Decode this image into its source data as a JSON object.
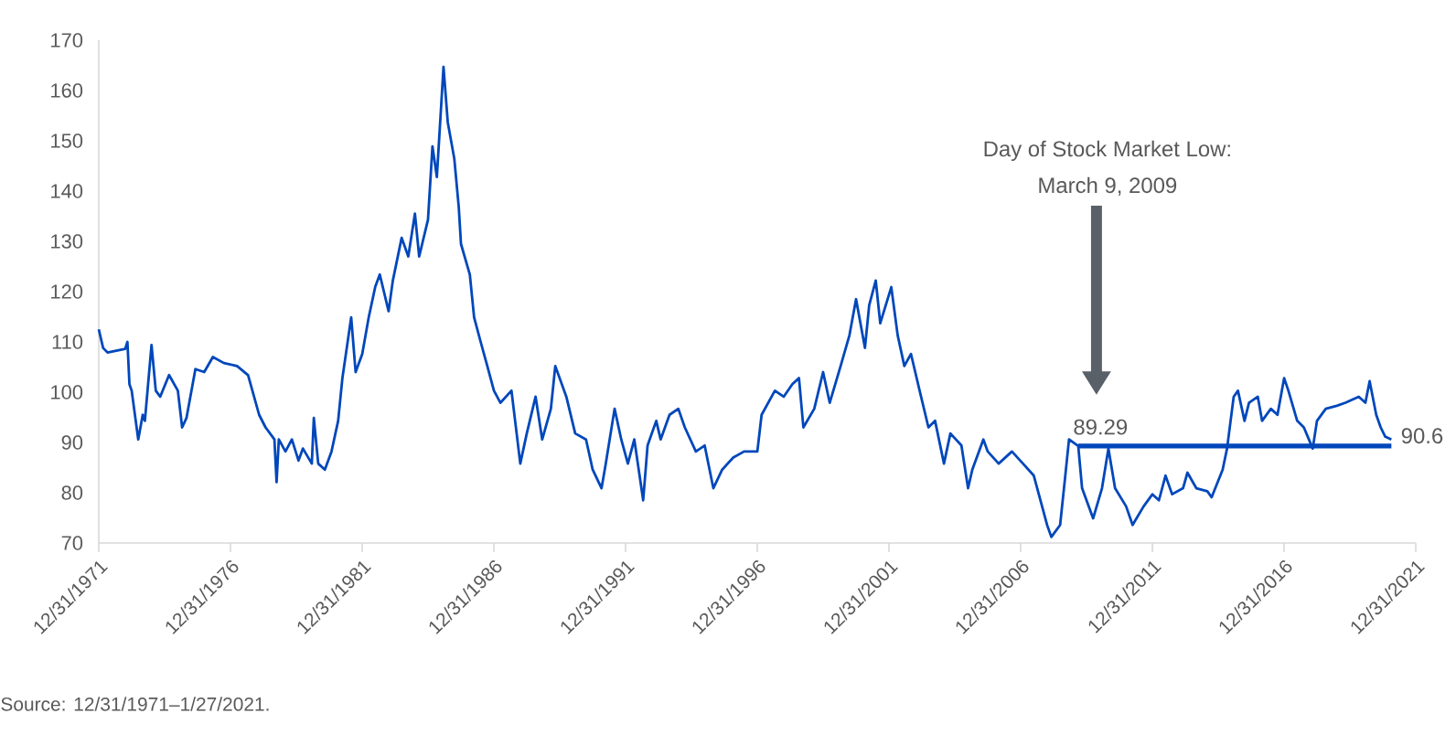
{
  "chart_data": {
    "type": "line",
    "xlim": [
      "1971-12-31",
      "2021-12-31"
    ],
    "ylim": [
      70,
      170
    ],
    "xticks": [
      {
        "value": "1971-12-31",
        "label": "12/31/1971"
      },
      {
        "value": "1976-12-31",
        "label": "12/31/1976"
      },
      {
        "value": "1981-12-31",
        "label": "12/31/1981"
      },
      {
        "value": "1986-12-31",
        "label": "12/31/1986"
      },
      {
        "value": "1991-12-31",
        "label": "12/31/1991"
      },
      {
        "value": "1996-12-31",
        "label": "12/31/1996"
      },
      {
        "value": "2001-12-31",
        "label": "12/31/2001"
      },
      {
        "value": "2006-12-31",
        "label": "12/31/2006"
      },
      {
        "value": "2011-12-31",
        "label": "12/31/2011"
      },
      {
        "value": "2016-12-31",
        "label": "12/31/2016"
      },
      {
        "value": "2021-12-31",
        "label": "12/31/2021"
      }
    ],
    "yticks": [
      70,
      80,
      90,
      100,
      110,
      120,
      130,
      140,
      150,
      160,
      170
    ],
    "series": [
      {
        "color": "#0047bb",
        "x": [
          "1971-12-31",
          "1972-03",
          "1972-05",
          "1973-01",
          "1973-02",
          "1973-03",
          "1973-04",
          "1973-07",
          "1973-09",
          "1973-10",
          "1974-01",
          "1974-03",
          "1974-05",
          "1974-09",
          "1975-01",
          "1975-03",
          "1975-05",
          "1975-09",
          "1976-01",
          "1976-05",
          "1976-10",
          "1977-04",
          "1977-09",
          "1978-02",
          "1978-05",
          "1978-09",
          "1978-10",
          "1978-11",
          "1979-02",
          "1979-05",
          "1979-08",
          "1979-10",
          "1980-02",
          "1980-03",
          "1980-05",
          "1980-08",
          "1980-11",
          "1981-02",
          "1981-04",
          "1981-08",
          "1981-10",
          "1982-01",
          "1982-04",
          "1982-07",
          "1982-09",
          "1983-01",
          "1983-03",
          "1983-07",
          "1983-10",
          "1984-01",
          "1984-03",
          "1984-07",
          "1984-09",
          "1984-11",
          "1985-02",
          "1985-04",
          "1985-07",
          "1985-09",
          "1985-10",
          "1986-02",
          "1986-04",
          "1986-07",
          "1986-10",
          "1987-01",
          "1987-04",
          "1987-09",
          "1988-01",
          "1988-04",
          "1988-08",
          "1988-11",
          "1989-03",
          "1989-05",
          "1989-10",
          "1990-02",
          "1990-07",
          "1990-10",
          "1991-02",
          "1991-04",
          "1991-08",
          "1991-11",
          "1992-02",
          "1992-05",
          "1992-09",
          "1992-11",
          "1993-03",
          "1993-05",
          "1993-09",
          "1994-01",
          "1994-04",
          "1994-09",
          "1995-01",
          "1995-05",
          "1995-09",
          "1996-02",
          "1996-07",
          "1997-01",
          "1997-03",
          "1997-09",
          "1998-01",
          "1998-05",
          "1998-08",
          "1998-10",
          "1999-03",
          "1999-07",
          "1999-10",
          "2000-03",
          "2000-07",
          "2000-10",
          "2001-02",
          "2001-04",
          "2001-07",
          "2001-09",
          "2002-02",
          "2002-05",
          "2002-08",
          "2002-11",
          "2003-03",
          "2003-07",
          "2003-10",
          "2004-02",
          "2004-05",
          "2004-10",
          "2005-01",
          "2005-03",
          "2005-08",
          "2005-10",
          "2006-03",
          "2006-09",
          "2007-02",
          "2007-07",
          "2007-10",
          "2008-01",
          "2008-03",
          "2008-07",
          "2008-09",
          "2008-11",
          "2009-03-09",
          "2009-05",
          "2009-10",
          "2010-02",
          "2010-05",
          "2010-08",
          "2011-01",
          "2011-04",
          "2011-09",
          "2012-01",
          "2012-04",
          "2012-07",
          "2012-10",
          "2013-03",
          "2013-05",
          "2013-09",
          "2014-02",
          "2014-04",
          "2014-09",
          "2014-11",
          "2015-02",
          "2015-04",
          "2015-07",
          "2015-09",
          "2016-01",
          "2016-03",
          "2016-07",
          "2016-10",
          "2017-01",
          "2017-03",
          "2017-07",
          "2017-10",
          "2018-02",
          "2018-04",
          "2018-08",
          "2019-01",
          "2019-05",
          "2019-11",
          "2020-02",
          "2020-04",
          "2020-07",
          "2020-09",
          "2020-11",
          "2021-01-27"
        ],
        "values": [
          112.5,
          108.8,
          107.9,
          108.6,
          110,
          101.6,
          100.3,
          90.6,
          95.5,
          94.3,
          109.4,
          100.3,
          99.1,
          103.4,
          100.3,
          93,
          94.9,
          104.6,
          104,
          107,
          105.8,
          105.2,
          103.4,
          95.5,
          93,
          90.6,
          82.1,
          90.6,
          88.2,
          90.6,
          86.4,
          88.8,
          85.8,
          94.9,
          85.8,
          84.6,
          88.2,
          94.3,
          102.8,
          114.9,
          104,
          107.6,
          114.9,
          121,
          123.4,
          116.1,
          122.2,
          130.7,
          127,
          135.5,
          127,
          134.3,
          148.9,
          142.8,
          164.7,
          153.7,
          146.4,
          136.7,
          129.5,
          123.4,
          114.9,
          110,
          105.2,
          100.3,
          97.9,
          100.3,
          85.8,
          91.8,
          99.1,
          90.6,
          96.7,
          105.2,
          99.1,
          91.8,
          90.6,
          84.6,
          80.9,
          85.8,
          96.7,
          90.6,
          85.8,
          90.6,
          78.5,
          89.4,
          94.3,
          90.6,
          95.5,
          96.7,
          93,
          88.2,
          89.4,
          80.9,
          84.6,
          87,
          88.2,
          88.2,
          95.5,
          100.3,
          99.1,
          101.6,
          102.8,
          93,
          96.7,
          104,
          97.9,
          105.2,
          111.3,
          118.5,
          108.8,
          117.3,
          122.2,
          113.7,
          120.9,
          111.3,
          105.2,
          107.6,
          100.3,
          93,
          94.3,
          85.8,
          91.8,
          89.4,
          80.9,
          84.6,
          90.6,
          88.2,
          85.8,
          88.2,
          85.8,
          83.4,
          78.5,
          73.6,
          71.2,
          73.6,
          82.1,
          90.6,
          89.29,
          80.9,
          74.9,
          80.9,
          88.8,
          80.9,
          77.3,
          73.6,
          77.3,
          79.7,
          78.5,
          83.4,
          79.7,
          80.9,
          84,
          80.9,
          80.3,
          79.1,
          84.6,
          88.8,
          99.1,
          100.3,
          94.3,
          97.9,
          99.1,
          94.3,
          96.7,
          95.5,
          102.8,
          100.3,
          94.3,
          93,
          88.8,
          94.3,
          96.7,
          97.3,
          97.9,
          99.1,
          97.9,
          102.2,
          95.5,
          93,
          91.2,
          90.6
        ]
      },
      {
        "color": "#0047bb",
        "x": [
          "2009-03-09",
          "2021-01-27"
        ],
        "values": [
          89.29,
          89.29
        ]
      }
    ],
    "annotations": [
      "Day of Stock Market Low:",
      "March 9, 2009",
      {
        "text": "89.29",
        "x": "2009-03-09",
        "y": 89.29
      },
      {
        "text": "90.6",
        "x": "2021-01-27",
        "y": 90.6
      },
      "Source: 12/31/1971–1/27/2021."
    ]
  }
}
